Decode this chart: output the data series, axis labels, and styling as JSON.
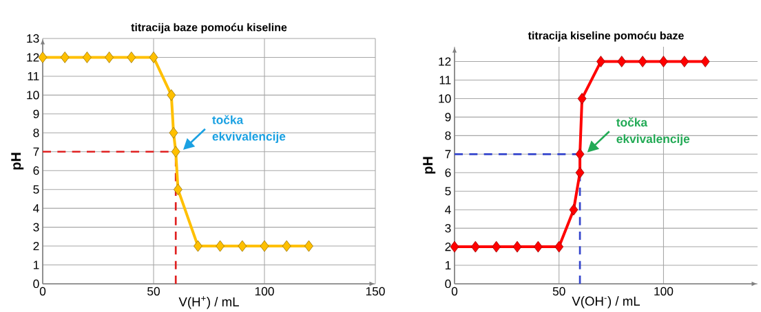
{
  "chart_data": [
    {
      "type": "line",
      "title": "titracija baze pomoću kiseline",
      "xlabel": "V(H$^{+}$) / mL",
      "ylabel": "pH",
      "x": [
        0,
        10,
        20,
        30,
        40,
        50,
        58,
        59,
        60,
        61,
        70,
        80,
        90,
        100,
        110,
        120
      ],
      "series": [
        {
          "color": "#ffc000",
          "values": [
            12,
            12,
            12,
            12,
            12,
            12,
            10,
            8,
            7,
            5,
            2,
            2,
            2,
            2,
            2,
            2
          ]
        }
      ],
      "marker": "diamond",
      "xlim": [
        0,
        150
      ],
      "ylim": [
        0,
        13
      ],
      "xticks": [
        0,
        50,
        100,
        150
      ],
      "yticks": [
        0,
        1,
        2,
        3,
        4,
        5,
        6,
        7,
        8,
        9,
        10,
        11,
        12,
        13
      ],
      "grid": true,
      "ref_lines": [
        {
          "axis": "y",
          "value": 7,
          "color": "#e02020",
          "line_style": "dashed"
        },
        {
          "axis": "x",
          "value": 60,
          "color": "#e02020",
          "line_style": "dashed"
        }
      ],
      "annotations": [
        "točka ekvivalencije"
      ]
    },
    {
      "type": "line",
      "title": "titracija kiseline pomoću baze",
      "xlabel": "V(OH$^{-}$) / mL",
      "ylabel": "pH",
      "x": [
        0,
        10,
        20,
        30,
        40,
        50,
        57,
        60,
        60,
        61,
        70,
        80,
        90,
        100,
        110,
        120
      ],
      "series": [
        {
          "color": "#ff0000",
          "values": [
            2,
            2,
            2,
            2,
            2,
            2,
            4,
            6,
            7,
            10,
            12,
            12,
            12,
            12,
            12,
            12
          ]
        }
      ],
      "marker": "diamond",
      "xlim": [
        0,
        145
      ],
      "ylim": [
        0,
        12.8
      ],
      "xticks": [
        0,
        50,
        100
      ],
      "yticks": [
        0,
        1,
        2,
        3,
        4,
        5,
        6,
        7,
        8,
        9,
        10,
        11,
        12
      ],
      "grid": true,
      "ref_lines": [
        {
          "axis": "y",
          "value": 7,
          "color": "#3344cc",
          "line_style": "dashed"
        },
        {
          "axis": "x",
          "value": 60,
          "color": "#3344cc",
          "line_style": "dashed"
        }
      ],
      "annotations": [
        "točka ekvivalencije"
      ]
    }
  ]
}
